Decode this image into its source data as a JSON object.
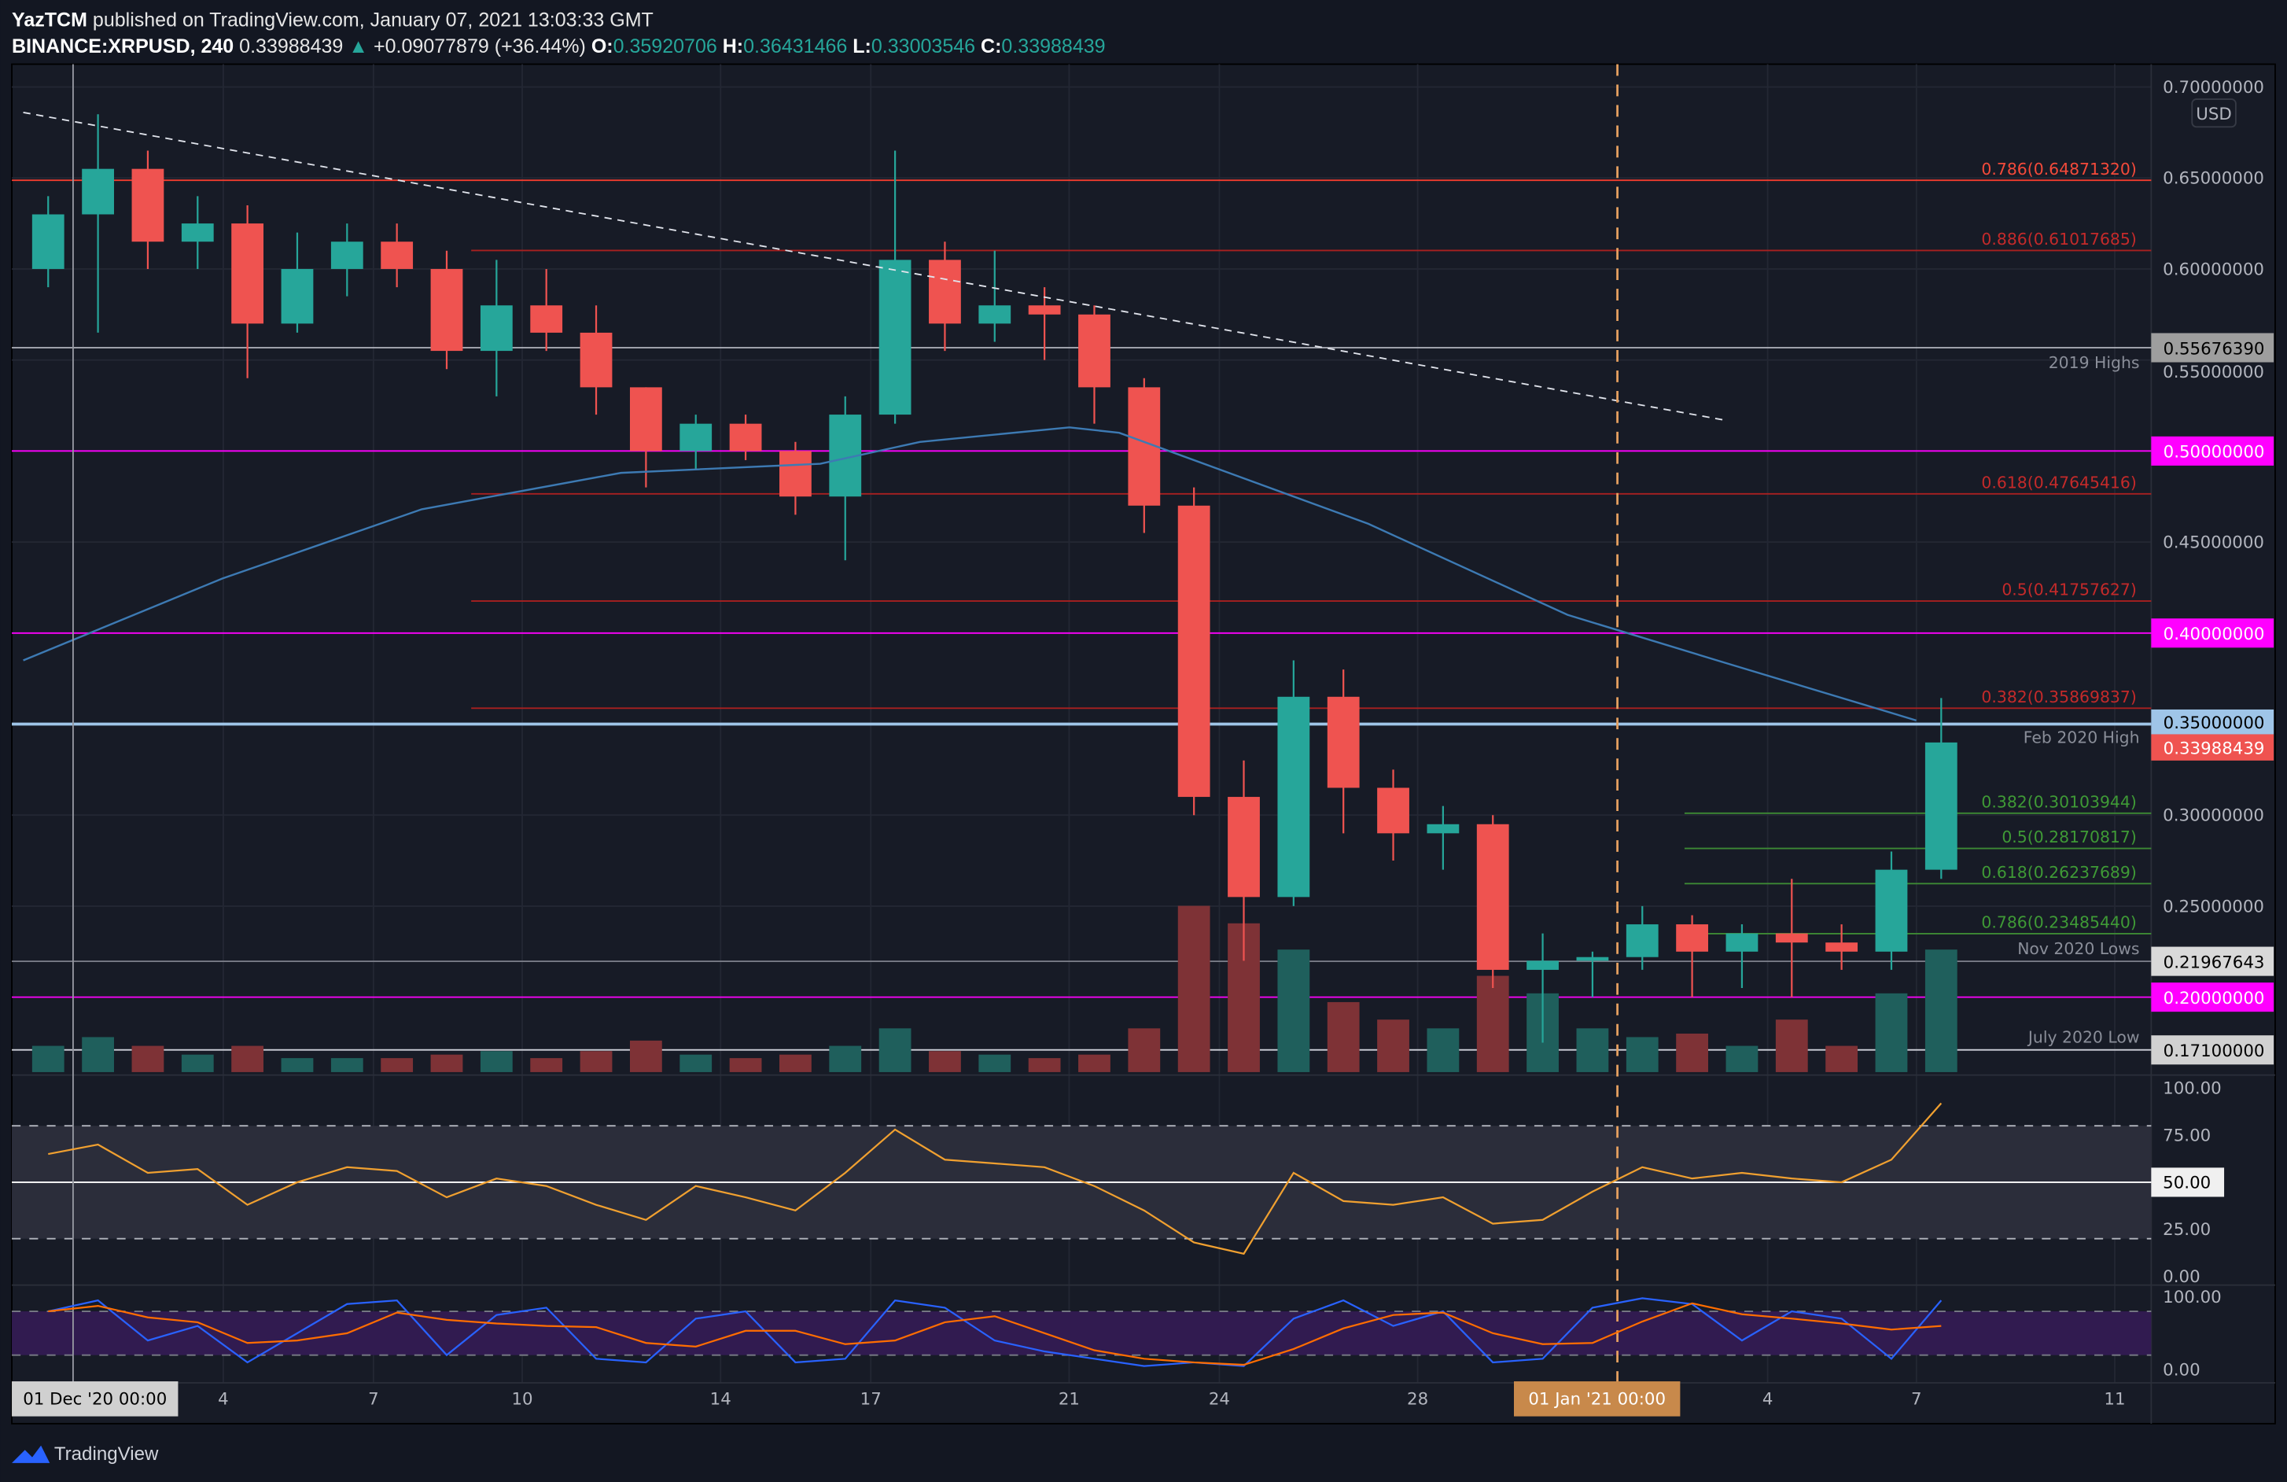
{
  "header": {
    "author": "YazTCM",
    "published": "published on TradingView.com, January 07, 2021 13:03:33 GMT",
    "symbol": "BINANCE:XRPUSD, 240",
    "last": "0.33988439",
    "change": "+0.09077879 (+36.44%)",
    "o_label": "O:",
    "o": "0.35920706",
    "h_label": "H:",
    "h": "0.36431466",
    "l_label": "L:",
    "l": "0.33003546",
    "c_label": "C:",
    "c": "0.33988439"
  },
  "currency_badge": "USD",
  "brand": "TradingView",
  "colors": {
    "up": "#26a69a",
    "down": "#ef5350",
    "background": "#171b26",
    "magenta": "#ff00ff",
    "ma": "#3d7ab3",
    "rsi": "#f0a030",
    "stoch_k": "#2962ff",
    "stoch_d": "#ff6d00"
  },
  "chart_data": {
    "type": "candlestick",
    "timeframe": "240",
    "price_axis": {
      "ticks": [
        "0.70000000",
        "0.65000000",
        "0.60000000",
        "0.55000000",
        "0.45000000",
        "0.30000000",
        "0.25000000"
      ],
      "range": [
        0.165,
        0.705
      ]
    },
    "time_axis": [
      "01 Dec '20   00:00",
      "4",
      "7",
      "10",
      "14",
      "17",
      "21",
      "24",
      "28",
      "01 Jan '21   00:00",
      "4",
      "7",
      "11"
    ],
    "candles_daily_approx": [
      {
        "date": "2020-11-30",
        "o": 0.6,
        "h": 0.64,
        "l": 0.59,
        "c": 0.63,
        "v": 15
      },
      {
        "date": "2020-12-01",
        "o": 0.63,
        "h": 0.685,
        "l": 0.565,
        "c": 0.655,
        "v": 20
      },
      {
        "date": "2020-12-02",
        "o": 0.655,
        "h": 0.665,
        "l": 0.6,
        "c": 0.615,
        "v": 15
      },
      {
        "date": "2020-12-03",
        "o": 0.615,
        "h": 0.64,
        "l": 0.6,
        "c": 0.625,
        "v": 10
      },
      {
        "date": "2020-12-04",
        "o": 0.625,
        "h": 0.635,
        "l": 0.54,
        "c": 0.57,
        "v": 15
      },
      {
        "date": "2020-12-05",
        "o": 0.57,
        "h": 0.62,
        "l": 0.565,
        "c": 0.6,
        "v": 8
      },
      {
        "date": "2020-12-06",
        "o": 0.6,
        "h": 0.625,
        "l": 0.585,
        "c": 0.615,
        "v": 8
      },
      {
        "date": "2020-12-07",
        "o": 0.615,
        "h": 0.625,
        "l": 0.59,
        "c": 0.6,
        "v": 8
      },
      {
        "date": "2020-12-08",
        "o": 0.6,
        "h": 0.61,
        "l": 0.545,
        "c": 0.555,
        "v": 10
      },
      {
        "date": "2020-12-09",
        "o": 0.555,
        "h": 0.605,
        "l": 0.53,
        "c": 0.58,
        "v": 12
      },
      {
        "date": "2020-12-10",
        "o": 0.58,
        "h": 0.6,
        "l": 0.555,
        "c": 0.565,
        "v": 8
      },
      {
        "date": "2020-12-11",
        "o": 0.565,
        "h": 0.58,
        "l": 0.52,
        "c": 0.535,
        "v": 12
      },
      {
        "date": "2020-12-12",
        "o": 0.535,
        "h": 0.535,
        "l": 0.48,
        "c": 0.5,
        "v": 18
      },
      {
        "date": "2020-12-13",
        "o": 0.5,
        "h": 0.52,
        "l": 0.49,
        "c": 0.515,
        "v": 10
      },
      {
        "date": "2020-12-14",
        "o": 0.515,
        "h": 0.52,
        "l": 0.495,
        "c": 0.5,
        "v": 8
      },
      {
        "date": "2020-12-15",
        "o": 0.5,
        "h": 0.505,
        "l": 0.465,
        "c": 0.475,
        "v": 10
      },
      {
        "date": "2020-12-16",
        "o": 0.475,
        "h": 0.53,
        "l": 0.44,
        "c": 0.52,
        "v": 15
      },
      {
        "date": "2020-12-17",
        "o": 0.52,
        "h": 0.665,
        "l": 0.515,
        "c": 0.605,
        "v": 25
      },
      {
        "date": "2020-12-18",
        "o": 0.605,
        "h": 0.615,
        "l": 0.555,
        "c": 0.57,
        "v": 12
      },
      {
        "date": "2020-12-19",
        "o": 0.57,
        "h": 0.61,
        "l": 0.56,
        "c": 0.58,
        "v": 10
      },
      {
        "date": "2020-12-20",
        "o": 0.58,
        "h": 0.59,
        "l": 0.55,
        "c": 0.575,
        "v": 8
      },
      {
        "date": "2020-12-21",
        "o": 0.575,
        "h": 0.58,
        "l": 0.515,
        "c": 0.535,
        "v": 10
      },
      {
        "date": "2020-12-22",
        "o": 0.535,
        "h": 0.54,
        "l": 0.455,
        "c": 0.47,
        "v": 25
      },
      {
        "date": "2020-12-23",
        "o": 0.47,
        "h": 0.48,
        "l": 0.3,
        "c": 0.31,
        "v": 95
      },
      {
        "date": "2020-12-24",
        "o": 0.31,
        "h": 0.33,
        "l": 0.22,
        "c": 0.255,
        "v": 85
      },
      {
        "date": "2020-12-25",
        "o": 0.255,
        "h": 0.385,
        "l": 0.25,
        "c": 0.365,
        "v": 70
      },
      {
        "date": "2020-12-26",
        "o": 0.365,
        "h": 0.38,
        "l": 0.29,
        "c": 0.315,
        "v": 40
      },
      {
        "date": "2020-12-27",
        "o": 0.315,
        "h": 0.325,
        "l": 0.275,
        "c": 0.29,
        "v": 30
      },
      {
        "date": "2020-12-28",
        "o": 0.29,
        "h": 0.305,
        "l": 0.27,
        "c": 0.295,
        "v": 25
      },
      {
        "date": "2020-12-29",
        "o": 0.295,
        "h": 0.3,
        "l": 0.205,
        "c": 0.215,
        "v": 55
      },
      {
        "date": "2020-12-30",
        "o": 0.215,
        "h": 0.235,
        "l": 0.175,
        "c": 0.22,
        "v": 45
      },
      {
        "date": "2020-12-31",
        "o": 0.22,
        "h": 0.225,
        "l": 0.2,
        "c": 0.222,
        "v": 25
      },
      {
        "date": "2021-01-01",
        "o": 0.222,
        "h": 0.25,
        "l": 0.215,
        "c": 0.24,
        "v": 20
      },
      {
        "date": "2021-01-02",
        "o": 0.24,
        "h": 0.245,
        "l": 0.2,
        "c": 0.225,
        "v": 22
      },
      {
        "date": "2021-01-03",
        "o": 0.225,
        "h": 0.24,
        "l": 0.205,
        "c": 0.235,
        "v": 15
      },
      {
        "date": "2021-01-04",
        "o": 0.235,
        "h": 0.265,
        "l": 0.2,
        "c": 0.23,
        "v": 30
      },
      {
        "date": "2021-01-05",
        "o": 0.23,
        "h": 0.24,
        "l": 0.215,
        "c": 0.225,
        "v": 15
      },
      {
        "date": "2021-01-06",
        "o": 0.225,
        "h": 0.28,
        "l": 0.215,
        "c": 0.27,
        "v": 45
      },
      {
        "date": "2021-01-07",
        "o": 0.27,
        "h": 0.3643,
        "l": 0.265,
        "c": 0.3399,
        "v": 70
      }
    ],
    "moving_average": [
      {
        "date": "2020-11-30",
        "v": 0.385
      },
      {
        "date": "2020-12-04",
        "v": 0.43
      },
      {
        "date": "2020-12-08",
        "v": 0.468
      },
      {
        "date": "2020-12-12",
        "v": 0.488
      },
      {
        "date": "2020-12-16",
        "v": 0.493
      },
      {
        "date": "2020-12-18",
        "v": 0.505
      },
      {
        "date": "2020-12-21",
        "v": 0.513
      },
      {
        "date": "2020-12-22",
        "v": 0.51
      },
      {
        "date": "2020-12-24",
        "v": 0.49
      },
      {
        "date": "2020-12-27",
        "v": 0.46
      },
      {
        "date": "2020-12-31",
        "v": 0.41
      },
      {
        "date": "2021-01-03",
        "v": 0.385
      },
      {
        "date": "2021-01-07",
        "v": 0.352
      }
    ],
    "trendline": [
      {
        "date": "2020-11-30",
        "price": 0.686
      },
      {
        "date": "2021-01-03",
        "price": 0.517
      }
    ],
    "vertical_marker_date": "2021-01-01",
    "fib_levels_red": [
      {
        "label": "0.786(0.64871320)",
        "price": 0.6487132,
        "full": true
      },
      {
        "label": "0.886(0.61017685)",
        "price": 0.61017685
      },
      {
        "label": "0.618(0.47645416)",
        "price": 0.47645416
      },
      {
        "label": "0.5(0.41757627)",
        "price": 0.41757627
      },
      {
        "label": "0.382(0.35869837)",
        "price": 0.35869837
      }
    ],
    "fib_levels_green": [
      {
        "label": "0.382(0.30103944)",
        "price": 0.30103944
      },
      {
        "label": "0.5(0.28170817)",
        "price": 0.28170817
      },
      {
        "label": "0.618(0.26237689)",
        "price": 0.26237689
      },
      {
        "label": "0.786(0.23485440)",
        "price": 0.2348544
      }
    ],
    "horizontal_levels": [
      {
        "price": 0.5567639,
        "label": "0.55676390",
        "note": "2019 Highs",
        "line": "#b2b5be",
        "box": "#9e9e9e",
        "text": "#000"
      },
      {
        "price": 0.5,
        "label": "0.50000000",
        "note": "",
        "line": "#ff00ff",
        "box": "#ff00ff",
        "text": "#fff"
      },
      {
        "price": 0.4,
        "label": "0.40000000",
        "note": "",
        "line": "#ff00ff",
        "box": "#ff00ff",
        "text": "#fff"
      },
      {
        "price": 0.35,
        "label": "0.35000000",
        "note": "Feb 2020 High",
        "line": "#9fc5e8",
        "box": "#9fc5e8",
        "text": "#000"
      },
      {
        "price": 0.21967643,
        "label": "0.21967643",
        "note": "Nov 2020 Lows",
        "line": "#787b86",
        "box": "#d9d9d9",
        "text": "#000"
      },
      {
        "price": 0.2,
        "label": "0.20000000",
        "note": "",
        "line": "#ff00ff",
        "box": "#ff00ff",
        "text": "#fff"
      },
      {
        "price": 0.171,
        "label": "0.17100000",
        "note": "July 2020 Low",
        "line": "#d1d4dc",
        "box": "#d1d1d1",
        "text": "#000"
      }
    ],
    "last_price": {
      "price": 0.33988439,
      "label": "0.33988439"
    },
    "rsi": {
      "ticks": [
        "100.00",
        "75.00",
        "50.00",
        "25.00",
        "0.00"
      ],
      "bands": [
        80,
        20
      ],
      "values": [
        65,
        70,
        55,
        57,
        38,
        50,
        58,
        56,
        42,
        52,
        48,
        38,
        30,
        48,
        42,
        35,
        55,
        78,
        62,
        60,
        58,
        48,
        35,
        18,
        12,
        55,
        40,
        38,
        42,
        28,
        30,
        45,
        58,
        52,
        55,
        52,
        50,
        62,
        92
      ]
    },
    "stoch_rsi": {
      "ticks": [
        "100.00",
        "0.00"
      ],
      "bands": [
        80,
        20
      ],
      "k": [
        80,
        95,
        40,
        60,
        10,
        50,
        90,
        95,
        20,
        75,
        85,
        15,
        10,
        70,
        80,
        10,
        15,
        95,
        85,
        40,
        25,
        15,
        5,
        10,
        5,
        70,
        95,
        60,
        80,
        10,
        15,
        85,
        98,
        90,
        40,
        80,
        70,
        15,
        95
      ]
    }
  }
}
